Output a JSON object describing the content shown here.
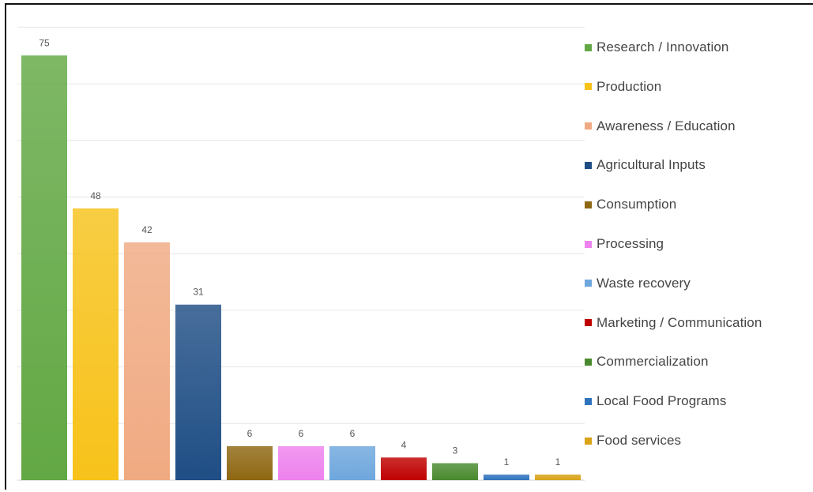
{
  "chart_data": {
    "type": "bar",
    "categories": [
      "Research / Innovation",
      "Production",
      "Awareness / Education",
      "Agricultural Inputs",
      "Consumption",
      "Processing",
      "Waste recovery",
      "Marketing / Communication",
      "Commercialization",
      "Local Food Programs",
      "Food services"
    ],
    "values": [
      75,
      48,
      42,
      31,
      6,
      6,
      6,
      4,
      3,
      1,
      1
    ],
    "colors": [
      "#62a844",
      "#f7c21a",
      "#f0aa82",
      "#1f4e85",
      "#8e6712",
      "#ee82ee",
      "#6ea7dd",
      "#c00000",
      "#4a8a2f",
      "#2f73bd",
      "#d9a217"
    ],
    "ylim": [
      0,
      80
    ],
    "grid": true,
    "legend": "right",
    "title": "",
    "xlabel": "",
    "ylabel": ""
  }
}
